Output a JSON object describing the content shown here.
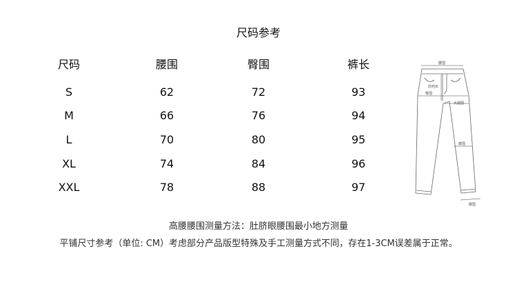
{
  "title": "尺码参考",
  "table": {
    "headers": [
      "尺码",
      "腰围",
      "臀围",
      "裤长"
    ],
    "rows": [
      [
        "S",
        "62",
        "72",
        "93"
      ],
      [
        "M",
        "66",
        "76",
        "94"
      ],
      [
        "L",
        "70",
        "80",
        "95"
      ],
      [
        "XL",
        "74",
        "84",
        "96"
      ],
      [
        "XXL",
        "78",
        "88",
        "97"
      ]
    ]
  },
  "diagram": {
    "labels": {
      "waist": "腰围",
      "front_rise": "前裆长",
      "hip": "臀围",
      "thigh": "大腿围",
      "knee": "膝围",
      "hem": "脚围"
    }
  },
  "notes": [
    "高腰腰围测量方法：肚脐眼腰围最小地方测量",
    "平铺尺寸参考（单位: CM）考虑部分产品版型特殊及手工测量方式不同，存在1-3CM误差属于正常。"
  ]
}
